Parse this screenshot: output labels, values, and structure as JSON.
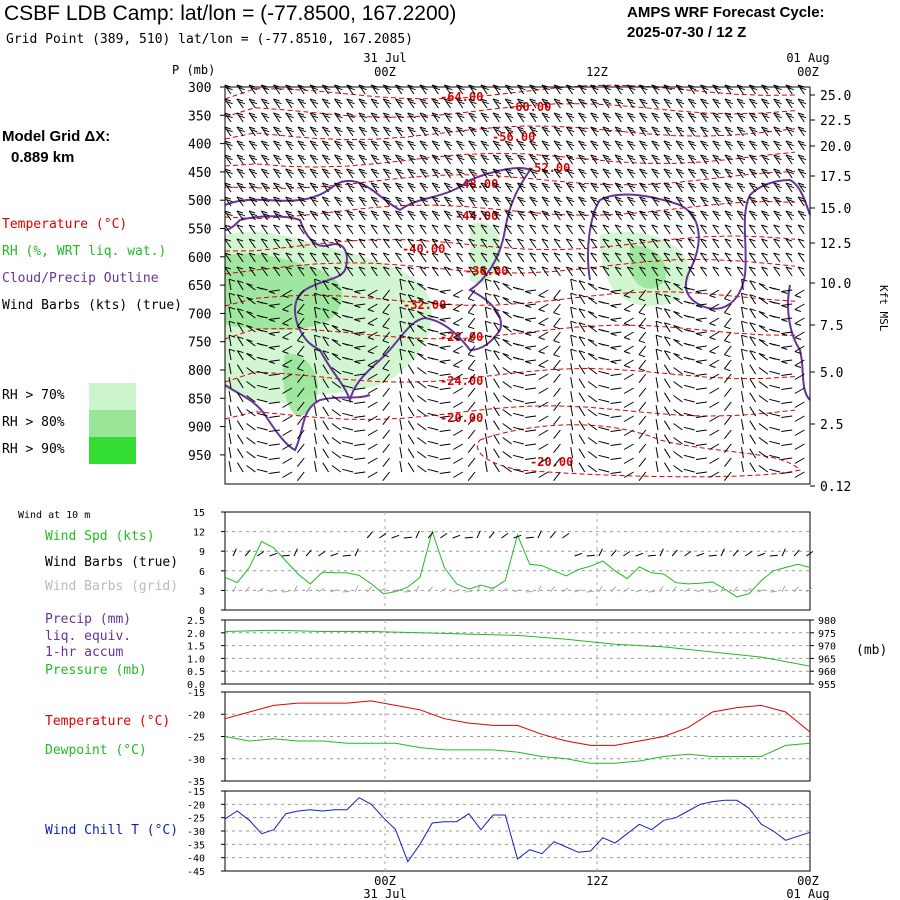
{
  "header": {
    "title": "CSBF LDB Camp:  lat/lon = (-77.8500, 167.2200)",
    "subtitle": "Grid Point (389, 510) lat/lon = (-77.8510, 167.2085)",
    "cycle_line1": "AMPS WRF Forecast Cycle:",
    "cycle_line2": "2025-07-30 / 12  Z"
  },
  "left_panel": {
    "grid_dx_line1": "Model Grid ΔX:",
    "grid_dx_line2": "0.889 km",
    "legend_temperature": "Temperature (°C)",
    "legend_rh": "RH (%, WRT liq. wat.)",
    "legend_cloud": "Cloud/Precip Outline",
    "legend_wind": "Wind Barbs (kts) (true)",
    "rh_70": "RH > 70%",
    "rh_80": "RH > 80%",
    "rh_90": "RH > 90%"
  },
  "colors": {
    "temperature": "#dd0000",
    "rh70": "#ccf5cc",
    "rh80": "#99e699",
    "rh90": "#33dd33",
    "cloud": "#663399",
    "wind_true": "#000000",
    "wind_grid": "#aaaaaa",
    "pressure": "#22bb22",
    "dewpoint": "#22bb22",
    "windchill": "#1122bb"
  },
  "chart_data": [
    {
      "type": "heatmap",
      "name": "time-height cross section",
      "y_axis_label": "P (mb)",
      "y_ticks": [
        "300",
        "350",
        "400",
        "450",
        "500",
        "550",
        "600",
        "650",
        "700",
        "750",
        "800",
        "850",
        "900",
        "950"
      ],
      "right_axis_label": "Kft MSL",
      "right_ticks": [
        "25.0",
        "22.5",
        "20.0",
        "17.5",
        "15.0",
        "12.5",
        "10.0",
        "7.5",
        "5.0",
        "2.5",
        "0.12"
      ],
      "top_time_labels": [
        {
          "date": "31 Jul",
          "hour": "00Z"
        },
        {
          "date": "",
          "hour": "12Z"
        },
        {
          "date": "01 Aug",
          "hour": "00Z"
        }
      ],
      "temperature_contour_labels": [
        "-64.00",
        "-60.00",
        "-56.00",
        "-52.00",
        "-48.00",
        "-44.00",
        "-40.00",
        "-36.00",
        "-32.00",
        "-28.00",
        "-24.00",
        "-20.00",
        "-20.00"
      ]
    },
    {
      "type": "line",
      "panel_title": "Wind at 10 m",
      "series_labels": [
        "Wind Spd (kts)",
        "Wind Barbs (true)",
        "Wind Barbs (grid)"
      ],
      "ylim": [
        0,
        15
      ],
      "y_ticks": [
        "15",
        "12",
        "9",
        "6",
        "3",
        "0"
      ],
      "series": [
        {
          "name": "Wind Spd (kts)",
          "x": [
            0,
            1,
            2,
            3,
            4,
            5,
            6,
            7,
            8,
            9,
            10,
            11,
            12,
            13,
            14,
            15,
            16,
            17,
            18,
            19,
            20,
            21,
            22,
            23,
            24,
            25,
            26,
            27,
            28,
            29,
            30,
            31,
            32,
            33,
            34,
            35,
            36,
            37,
            38,
            39,
            40,
            41,
            42,
            43,
            44,
            45,
            46,
            47,
            48
          ],
          "values": [
            5,
            4.2,
            6.5,
            10.5,
            9.5,
            7.5,
            5.5,
            4,
            5.8,
            5.7,
            5.7,
            5.3,
            4,
            2.5,
            2.8,
            3.5,
            5,
            12,
            6.5,
            4,
            3.2,
            3.8,
            3.3,
            4.5,
            11.5,
            7,
            6.8,
            6,
            5.2,
            6.2,
            6.7,
            7.5,
            6,
            4.8,
            6.6,
            5.7,
            5.5,
            4.2,
            4,
            4.1,
            4.3,
            3.2,
            2,
            2.5,
            4.5,
            6,
            6.5,
            7,
            6.5
          ]
        }
      ]
    },
    {
      "type": "line",
      "series_labels": [
        "Precip (mm)",
        "liq. equiv.",
        "1-hr accum",
        "Pressure (mb)"
      ],
      "left_ticks": [
        "2.5",
        "2.0",
        "1.5",
        "1.0",
        "0.5",
        "0.0"
      ],
      "right_ticks": [
        "980",
        "975",
        "970",
        "965",
        "960",
        "955"
      ],
      "right_unit": "(mb)",
      "ylim_precip": [
        0,
        2.5
      ],
      "ylim_pressure": [
        955,
        980
      ],
      "series": [
        {
          "name": "Pressure (mb)",
          "x": [
            0,
            4,
            8,
            12,
            16,
            20,
            24,
            28,
            32,
            36,
            40,
            44,
            48
          ],
          "values": [
            975.5,
            976,
            975.5,
            975.5,
            975,
            974.5,
            974,
            972.5,
            970.5,
            969.5,
            967.5,
            965.5,
            962
          ]
        },
        {
          "name": "Precip (mm)",
          "x": [
            0,
            48
          ],
          "values": [
            0,
            0
          ]
        }
      ]
    },
    {
      "type": "line",
      "series_labels": [
        "Temperature (°C)",
        "Dewpoint (°C)"
      ],
      "ylim": [
        -35,
        -15
      ],
      "y_ticks": [
        "-15",
        "-20",
        "-25",
        "-30",
        "-35"
      ],
      "series": [
        {
          "name": "Temperature (°C)",
          "x": [
            0,
            2,
            4,
            6,
            8,
            10,
            12,
            14,
            16,
            18,
            20,
            22,
            24,
            26,
            28,
            30,
            32,
            34,
            36,
            38,
            40,
            42,
            44,
            46,
            48
          ],
          "values": [
            -21,
            -19.5,
            -18,
            -17.5,
            -17.5,
            -17.5,
            -17,
            -18,
            -19,
            -21,
            -22,
            -22.5,
            -22.5,
            -24.5,
            -26,
            -27,
            -27,
            -26,
            -25,
            -23,
            -19.5,
            -18.5,
            -18,
            -19.5,
            -24
          ]
        },
        {
          "name": "Dewpoint (°C)",
          "x": [
            0,
            2,
            4,
            6,
            8,
            10,
            12,
            14,
            16,
            18,
            20,
            22,
            24,
            26,
            28,
            30,
            32,
            34,
            36,
            38,
            40,
            42,
            44,
            46,
            48
          ],
          "values": [
            -25,
            -26,
            -25.5,
            -26,
            -26,
            -26.5,
            -26.5,
            -26.5,
            -27.5,
            -28,
            -28,
            -28,
            -28.5,
            -29.5,
            -30,
            -31,
            -31,
            -30.5,
            -29.5,
            -29,
            -29.5,
            -29.5,
            -29.5,
            -27,
            -26.5
          ]
        }
      ]
    },
    {
      "type": "line",
      "series_labels": [
        "Wind Chill T (°C)"
      ],
      "ylim": [
        -45,
        -15
      ],
      "y_ticks": [
        "-15",
        "-20",
        "-25",
        "-30",
        "-35",
        "-40",
        "-45"
      ],
      "bottom_time_labels": [
        {
          "hour": "00Z",
          "date": "31 Jul"
        },
        {
          "hour": "12Z",
          "date": ""
        },
        {
          "hour": "00Z",
          "date": "01 Aug"
        }
      ],
      "series": [
        {
          "name": "Wind Chill T (°C)",
          "x": [
            0,
            1,
            2,
            3,
            4,
            5,
            6,
            7,
            8,
            9,
            10,
            11,
            12,
            13,
            14,
            15,
            16,
            17,
            18,
            19,
            20,
            21,
            22,
            23,
            24,
            25,
            26,
            27,
            28,
            29,
            30,
            31,
            32,
            33,
            34,
            35,
            36,
            37,
            38,
            39,
            40,
            41,
            42,
            43,
            44,
            45,
            46,
            47,
            48
          ],
          "values": [
            -25.5,
            -22.5,
            -26,
            -31,
            -29.5,
            -23.5,
            -22.5,
            -22,
            -22.5,
            -22,
            -22,
            -17.5,
            -20,
            -25,
            -29.5,
            -41.5,
            -35,
            -27,
            -26.5,
            -26.5,
            -23.5,
            -29.5,
            -24,
            -24,
            -40.5,
            -37,
            -38.5,
            -34,
            -36,
            -38,
            -37.5,
            -32.5,
            -34.5,
            -31,
            -27.5,
            -29.5,
            -26,
            -25,
            -22.5,
            -20,
            -19,
            -18.5,
            -18.5,
            -21.5,
            -27.5,
            -30,
            -33.5,
            -32,
            -30.5
          ]
        }
      ]
    }
  ]
}
